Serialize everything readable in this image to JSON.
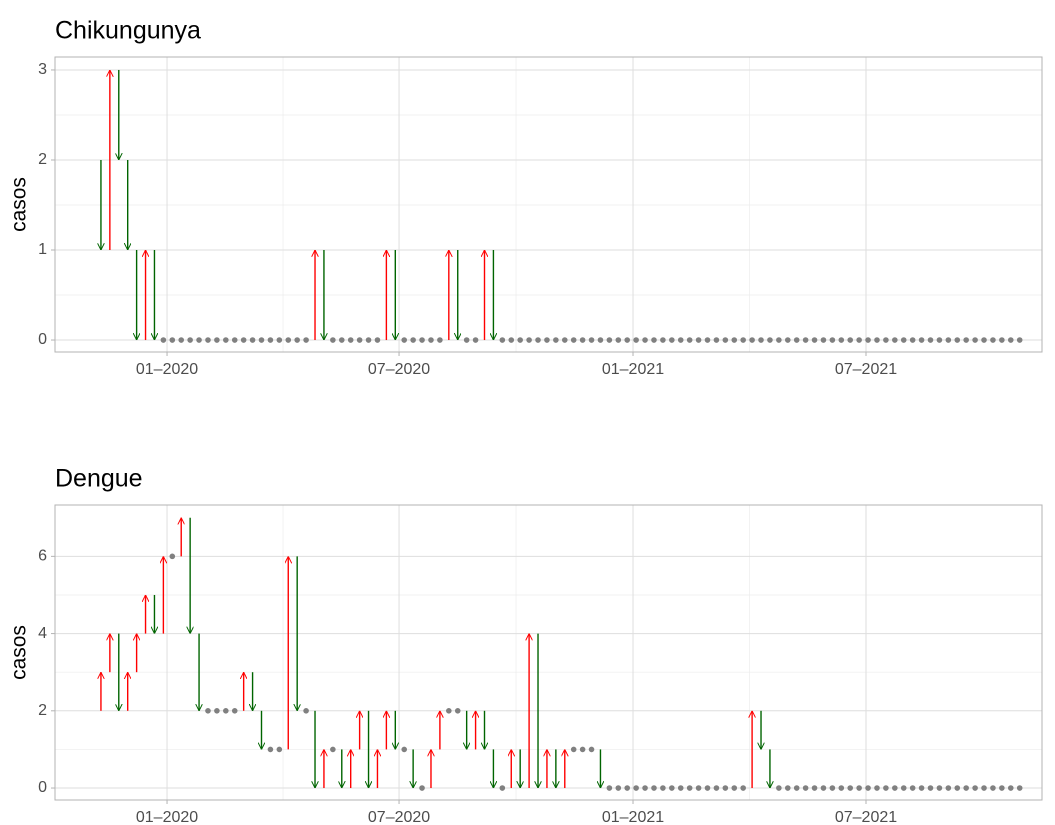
{
  "chart_data": [
    {
      "type": "arrow",
      "title": "Chikungunya",
      "y_label": "casos",
      "up_color": "#ff0000",
      "down_color": "#006400",
      "point_color": "#808080",
      "x": [
        0,
        1,
        2,
        3,
        4,
        5,
        6,
        7,
        8,
        9,
        10,
        11,
        12,
        13,
        14,
        15,
        16,
        17,
        18,
        19,
        20,
        21,
        22,
        23,
        24,
        25,
        26,
        27,
        28,
        29,
        30,
        31,
        32,
        33,
        34,
        35,
        36,
        37,
        38,
        39,
        40,
        41,
        42,
        43,
        44,
        45,
        46,
        47,
        48,
        49,
        50,
        51,
        52,
        53,
        54,
        55,
        56,
        57,
        58,
        59,
        60,
        61,
        62,
        63,
        64,
        65,
        66,
        67,
        68,
        69,
        70,
        71,
        72,
        73,
        74,
        75,
        76,
        77,
        78,
        79,
        80,
        81,
        82,
        83,
        84,
        85,
        86,
        87,
        88,
        89,
        90,
        91,
        92,
        93,
        94,
        95,
        96,
        97,
        98,
        99,
        100,
        101,
        102,
        103,
        104
      ],
      "values": [
        2,
        1,
        3,
        2,
        1,
        0,
        1,
        0,
        0,
        0,
        0,
        0,
        0,
        0,
        0,
        0,
        0,
        0,
        0,
        0,
        0,
        0,
        0,
        0,
        0,
        1,
        0,
        0,
        0,
        0,
        0,
        0,
        0,
        1,
        0,
        0,
        0,
        0,
        0,
        0,
        1,
        0,
        0,
        0,
        1,
        0,
        0,
        0,
        0,
        0,
        0,
        0,
        0,
        0,
        0,
        0,
        0,
        0,
        0,
        0,
        0,
        0,
        0,
        0,
        0,
        0,
        0,
        0,
        0,
        0,
        0,
        0,
        0,
        0,
        0,
        0,
        0,
        0,
        0,
        0,
        0,
        0,
        0,
        0,
        0,
        0,
        0,
        0,
        0,
        0,
        0,
        0,
        0,
        0,
        0,
        0,
        0,
        0,
        0,
        0,
        0,
        0,
        0,
        0,
        0
      ],
      "xlim": [
        -4.15,
        106.5
      ],
      "xticks": [
        {
          "value": 8.41,
          "label": "01–2020"
        },
        {
          "value": 34.42,
          "label": "07–2020"
        },
        {
          "value": 60.65,
          "label": "01–2021"
        },
        {
          "value": 86.77,
          "label": "07–2021"
        }
      ],
      "ylim": [
        -0.133,
        3.144
      ],
      "yticks": [
        0,
        1,
        2,
        3
      ],
      "grid": true
    },
    {
      "type": "arrow",
      "title": "Dengue",
      "y_label": "casos",
      "up_color": "#ff0000",
      "down_color": "#006400",
      "point_color": "#808080",
      "x": [
        0,
        1,
        2,
        3,
        4,
        5,
        6,
        7,
        8,
        9,
        10,
        11,
        12,
        13,
        14,
        15,
        16,
        17,
        18,
        19,
        20,
        21,
        22,
        23,
        24,
        25,
        26,
        27,
        28,
        29,
        30,
        31,
        32,
        33,
        34,
        35,
        36,
        37,
        38,
        39,
        40,
        41,
        42,
        43,
        44,
        45,
        46,
        47,
        48,
        49,
        50,
        51,
        52,
        53,
        54,
        55,
        56,
        57,
        58,
        59,
        60,
        61,
        62,
        63,
        64,
        65,
        66,
        67,
        68,
        69,
        70,
        71,
        72,
        73,
        74,
        75,
        76,
        77,
        78,
        79,
        80,
        81,
        82,
        83,
        84,
        85,
        86,
        87,
        88,
        89,
        90,
        91,
        92,
        93,
        94,
        95,
        96,
        97,
        98,
        99,
        100,
        101,
        102,
        103,
        104
      ],
      "values": [
        2,
        3,
        4,
        2,
        3,
        4,
        5,
        4,
        6,
        6,
        7,
        4,
        2,
        2,
        2,
        2,
        2,
        3,
        2,
        1,
        1,
        1,
        6,
        2,
        2,
        0,
        1,
        1,
        0,
        1,
        2,
        0,
        1,
        2,
        1,
        1,
        0,
        0,
        1,
        2,
        2,
        2,
        1,
        2,
        1,
        0,
        0,
        1,
        0,
        4,
        0,
        1,
        0,
        1,
        1,
        1,
        1,
        0,
        0,
        0,
        0,
        0,
        0,
        0,
        0,
        0,
        0,
        0,
        0,
        0,
        0,
        0,
        0,
        0,
        2,
        1,
        0,
        0,
        0,
        0,
        0,
        0,
        0,
        0,
        0,
        0,
        0,
        0,
        0,
        0,
        0,
        0,
        0,
        0,
        0,
        0,
        0,
        0,
        0,
        0,
        0,
        0,
        0,
        0,
        0
      ],
      "xlim": [
        -4.15,
        106.5
      ],
      "xticks": [
        {
          "value": 8.41,
          "label": "01–2020"
        },
        {
          "value": 34.42,
          "label": "07–2020"
        },
        {
          "value": 60.65,
          "label": "01–2021"
        },
        {
          "value": 86.77,
          "label": "07–2021"
        }
      ],
      "ylim": [
        -0.31,
        7.33
      ],
      "yticks": [
        0,
        2,
        4,
        6
      ],
      "grid": true
    }
  ]
}
